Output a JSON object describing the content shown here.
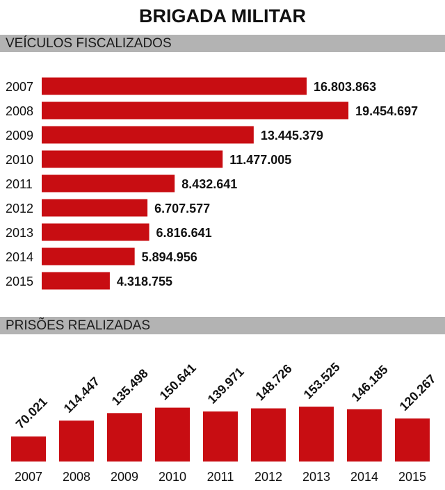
{
  "title": "BRIGADA MILITAR",
  "color": "#c80d12",
  "chart_data": [
    {
      "type": "bar",
      "orientation": "horizontal",
      "title": "VEÍCULOS FISCALIZADOS",
      "categories": [
        "2007",
        "2008",
        "2009",
        "2010",
        "2011",
        "2012",
        "2013",
        "2014",
        "2015"
      ],
      "values": [
        16803863,
        19454697,
        13445379,
        11477005,
        8432641,
        6707577,
        6816641,
        5894956,
        4318755
      ],
      "labels": [
        "16.803.863",
        "19.454.697",
        "13.445.379",
        "11.477.005",
        "8.432.641",
        "6.707.577",
        "6.816.641",
        "5.894.956",
        "4.318.755"
      ]
    },
    {
      "type": "bar",
      "orientation": "vertical",
      "title": "PRISÕES REALIZADAS",
      "categories": [
        "2007",
        "2008",
        "2009",
        "2010",
        "2011",
        "2012",
        "2013",
        "2014",
        "2015"
      ],
      "values": [
        70021,
        114447,
        135498,
        150641,
        139971,
        148726,
        153525,
        146185,
        120267
      ],
      "labels": [
        "70.021",
        "114.447",
        "135.498",
        "150.641",
        "139.971",
        "148.726",
        "153.525",
        "146.185",
        "120.267"
      ]
    }
  ]
}
